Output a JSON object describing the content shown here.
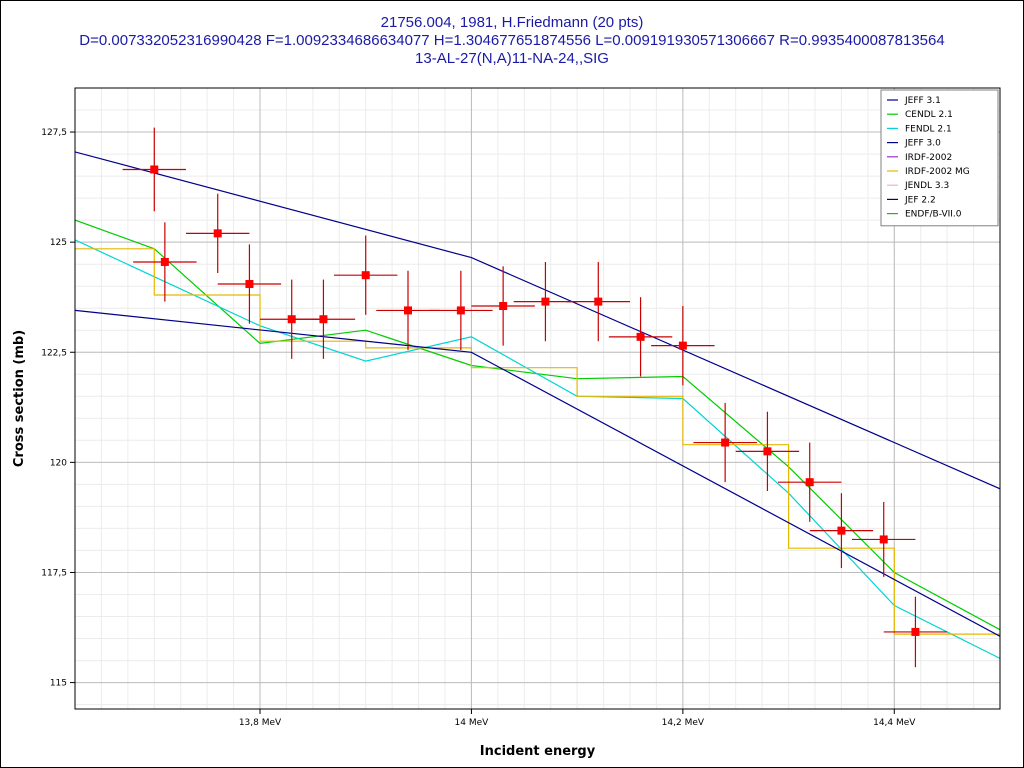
{
  "chart_data": {
    "type": "scatter",
    "title": "21756.004, 1981, H.Friedmann (20 pts)",
    "subtitle": "D=0.007332052316990428 F=1.0092334686634077 H=1.304677651874556 L=0.009191930571306667 R=0.9935400087813564",
    "reaction": "13-AL-27(N,A)11-NA-24,,SIG",
    "xlabel": "Incident energy",
    "ylabel": "Cross section (mb)",
    "xlim": [
      13.625,
      14.5
    ],
    "ylim": [
      114.4,
      128.5
    ],
    "x_ticks": [
      {
        "value": 13.8,
        "label": "13,8 MeV"
      },
      {
        "value": 14.0,
        "label": "14 MeV"
      },
      {
        "value": 14.2,
        "label": "14,2 MeV"
      },
      {
        "value": 14.4,
        "label": "14,4 MeV"
      }
    ],
    "y_ticks": [
      {
        "value": 115,
        "label": "115"
      },
      {
        "value": 117.5,
        "label": "117,5"
      },
      {
        "value": 120,
        "label": "120"
      },
      {
        "value": 122.5,
        "label": "122,5"
      },
      {
        "value": 125,
        "label": "125"
      },
      {
        "value": 127.5,
        "label": "127,5"
      }
    ],
    "grid": true,
    "legend_position": "top-right",
    "colors": {
      "points": "#ff0000",
      "errorbars": "#c80000",
      "title": "#1a1aa6"
    },
    "experimental_points": [
      {
        "x": 13.7,
        "y": 126.65,
        "dx": 0.03,
        "dy": 0.95
      },
      {
        "x": 13.71,
        "y": 124.55,
        "dx": 0.03,
        "dy": 0.9
      },
      {
        "x": 13.76,
        "y": 125.2,
        "dx": 0.03,
        "dy": 0.9
      },
      {
        "x": 13.79,
        "y": 124.05,
        "dx": 0.03,
        "dy": 0.9
      },
      {
        "x": 13.83,
        "y": 123.25,
        "dx": 0.03,
        "dy": 0.9
      },
      {
        "x": 13.86,
        "y": 123.25,
        "dx": 0.03,
        "dy": 0.9
      },
      {
        "x": 13.9,
        "y": 124.25,
        "dx": 0.03,
        "dy": 0.9
      },
      {
        "x": 13.94,
        "y": 123.45,
        "dx": 0.03,
        "dy": 0.9
      },
      {
        "x": 13.99,
        "y": 123.45,
        "dx": 0.03,
        "dy": 0.9
      },
      {
        "x": 14.03,
        "y": 123.55,
        "dx": 0.03,
        "dy": 0.9
      },
      {
        "x": 14.07,
        "y": 123.65,
        "dx": 0.03,
        "dy": 0.9
      },
      {
        "x": 14.12,
        "y": 123.65,
        "dx": 0.03,
        "dy": 0.9
      },
      {
        "x": 14.16,
        "y": 122.85,
        "dx": 0.03,
        "dy": 0.9
      },
      {
        "x": 14.2,
        "y": 122.65,
        "dx": 0.03,
        "dy": 0.9
      },
      {
        "x": 14.24,
        "y": 120.45,
        "dx": 0.03,
        "dy": 0.9
      },
      {
        "x": 14.28,
        "y": 120.25,
        "dx": 0.03,
        "dy": 0.9
      },
      {
        "x": 14.32,
        "y": 119.55,
        "dx": 0.03,
        "dy": 0.9
      },
      {
        "x": 14.35,
        "y": 118.45,
        "dx": 0.03,
        "dy": 0.85
      },
      {
        "x": 14.39,
        "y": 118.25,
        "dx": 0.03,
        "dy": 0.85
      },
      {
        "x": 14.42,
        "y": 116.15,
        "dx": 0.03,
        "dy": 0.8
      }
    ],
    "series": [
      {
        "name": "JEFF 3.1",
        "color": "#00008b",
        "x": [
          13.625,
          14.0,
          14.5
        ],
        "y": [
          127.05,
          124.65,
          119.4
        ]
      },
      {
        "name": "CENDL 2.1",
        "color": "#00cc00",
        "x": [
          13.625,
          13.7,
          13.8,
          13.9,
          14.0,
          14.1,
          14.2,
          14.3,
          14.4,
          14.5
        ],
        "y": [
          125.5,
          124.85,
          122.7,
          123.0,
          122.2,
          121.9,
          121.95,
          119.9,
          117.5,
          116.2
        ]
      },
      {
        "name": "FENDL 2.1",
        "color": "#00d4d4",
        "x": [
          13.625,
          13.8,
          13.9,
          14.0,
          14.1,
          14.2,
          14.3,
          14.4,
          14.5
        ],
        "y": [
          125.05,
          123.1,
          122.3,
          122.85,
          121.5,
          121.45,
          119.3,
          116.75,
          115.55
        ]
      },
      {
        "name": "JEFF 3.0",
        "color": "#00008b",
        "x": [],
        "y": []
      },
      {
        "name": "IRDF-2002",
        "color": "#9932cc",
        "x": [],
        "y": []
      },
      {
        "name": "IRDF-2002 MG",
        "color": "#e6b800",
        "x": [
          13.625,
          13.7,
          13.7,
          13.8,
          13.8,
          13.9,
          13.9,
          14.0,
          14.0,
          14.1,
          14.1,
          14.2,
          14.2,
          14.3,
          14.3,
          14.4,
          14.4,
          14.5
        ],
        "y": [
          124.85,
          124.85,
          123.8,
          123.8,
          122.75,
          122.75,
          122.6,
          122.6,
          122.15,
          122.15,
          121.5,
          121.5,
          120.4,
          120.4,
          118.05,
          118.05,
          116.1,
          116.1
        ]
      },
      {
        "name": "JENDL 3.3",
        "color": "#ffb0b0",
        "x": [],
        "y": []
      },
      {
        "name": "JEF 2.2",
        "color": "#00008b",
        "x": [
          13.625,
          14.0,
          14.5
        ],
        "y": [
          123.45,
          122.5,
          116.05
        ]
      },
      {
        "name": "ENDF/B-VII.0",
        "color": "#00cc00",
        "x": [],
        "y": []
      }
    ]
  }
}
